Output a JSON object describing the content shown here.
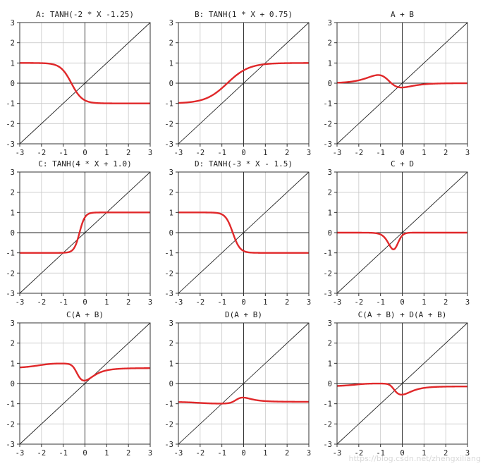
{
  "chart_data": [
    {
      "type": "line",
      "title": "A: TANH(-2 * X -1.25)",
      "fn": "A",
      "xlim": [
        -3,
        3
      ],
      "ylim": [
        -3,
        3
      ],
      "xticks": [
        -3,
        -2,
        -1,
        0,
        1,
        2,
        3
      ],
      "yticks": [
        -3,
        -2,
        -1,
        0,
        1,
        2,
        3
      ],
      "grid": true
    },
    {
      "type": "line",
      "title": "B: TANH(1 * X + 0.75)",
      "fn": "B",
      "xlim": [
        -3,
        3
      ],
      "ylim": [
        -3,
        3
      ],
      "xticks": [
        -3,
        -2,
        -1,
        0,
        1,
        2,
        3
      ],
      "yticks": [
        -3,
        -2,
        -1,
        0,
        1,
        2,
        3
      ],
      "grid": true
    },
    {
      "type": "line",
      "title": "A + B",
      "fn": "A+B",
      "xlim": [
        -3,
        3
      ],
      "ylim": [
        -3,
        3
      ],
      "xticks": [
        -3,
        -2,
        -1,
        0,
        1,
        2,
        3
      ],
      "yticks": [
        -3,
        -2,
        -1,
        0,
        1,
        2,
        3
      ],
      "grid": true
    },
    {
      "type": "line",
      "title": "C: TANH(4 * X + 1.0)",
      "fn": "C",
      "xlim": [
        -3,
        3
      ],
      "ylim": [
        -3,
        3
      ],
      "xticks": [
        -3,
        -2,
        -1,
        0,
        1,
        2,
        3
      ],
      "yticks": [
        -3,
        -2,
        -1,
        0,
        1,
        2,
        3
      ],
      "grid": true
    },
    {
      "type": "line",
      "title": "D: TANH(-3 * X - 1.5)",
      "fn": "D",
      "xlim": [
        -3,
        3
      ],
      "ylim": [
        -3,
        3
      ],
      "xticks": [
        -3,
        -2,
        -1,
        0,
        1,
        2,
        3
      ],
      "yticks": [
        -3,
        -2,
        -1,
        0,
        1,
        2,
        3
      ],
      "grid": true
    },
    {
      "type": "line",
      "title": "C + D",
      "fn": "C+D",
      "xlim": [
        -3,
        3
      ],
      "ylim": [
        -3,
        3
      ],
      "xticks": [
        -3,
        -2,
        -1,
        0,
        1,
        2,
        3
      ],
      "yticks": [
        -3,
        -2,
        -1,
        0,
        1,
        2,
        3
      ],
      "grid": true
    },
    {
      "type": "line",
      "title": "C(A + B)",
      "fn": "C(A+B)",
      "xlim": [
        -3,
        3
      ],
      "ylim": [
        -3,
        3
      ],
      "xticks": [
        -3,
        -2,
        -1,
        0,
        1,
        2,
        3
      ],
      "yticks": [
        -3,
        -2,
        -1,
        0,
        1,
        2,
        3
      ],
      "grid": true
    },
    {
      "type": "line",
      "title": "D(A + B)",
      "fn": "D(A+B)",
      "xlim": [
        -3,
        3
      ],
      "ylim": [
        -3,
        3
      ],
      "xticks": [
        -3,
        -2,
        -1,
        0,
        1,
        2,
        3
      ],
      "yticks": [
        -3,
        -2,
        -1,
        0,
        1,
        2,
        3
      ],
      "grid": true
    },
    {
      "type": "line",
      "title": "C(A + B) + D(A + B)",
      "fn": "C(A+B)+D(A+B)",
      "xlim": [
        -3,
        3
      ],
      "ylim": [
        -3,
        3
      ],
      "xticks": [
        -3,
        -2,
        -1,
        0,
        1,
        2,
        3
      ],
      "yticks": [
        -3,
        -2,
        -1,
        0,
        1,
        2,
        3
      ],
      "grid": true
    }
  ],
  "colors": {
    "curve": "#e0282a",
    "reference": "#222222",
    "grid": "#c8c8c8"
  },
  "watermark": "https://blog.csdn.net/zhengxiliang"
}
